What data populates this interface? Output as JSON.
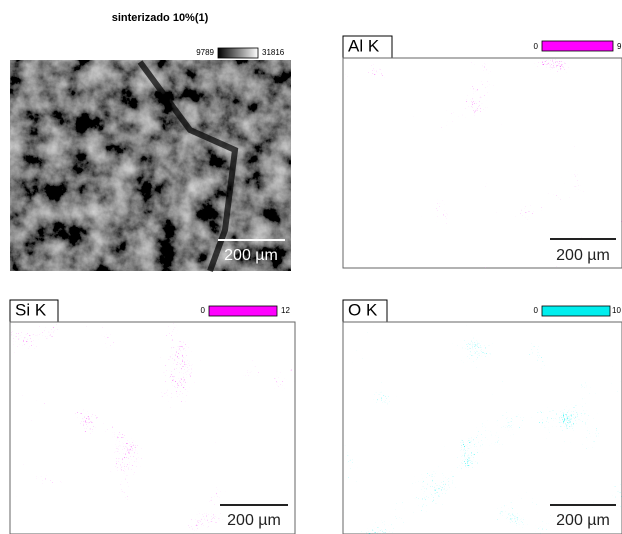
{
  "title": "sinterizado 10%(1)",
  "panels": [
    {
      "scale": {
        "min": 9789,
        "max": 31816
      },
      "scale_bar": "200 µm"
    },
    {
      "label": "Al K",
      "scale": {
        "min": 0,
        "max": 9
      },
      "scale_bar": "200 µm"
    },
    {
      "label": "Si K",
      "scale": {
        "min": 0,
        "max": 12
      },
      "scale_bar": "200 µm"
    },
    {
      "label": "O K",
      "scale": {
        "min": 0,
        "max": 10
      },
      "scale_bar": "200 µm"
    }
  ]
}
